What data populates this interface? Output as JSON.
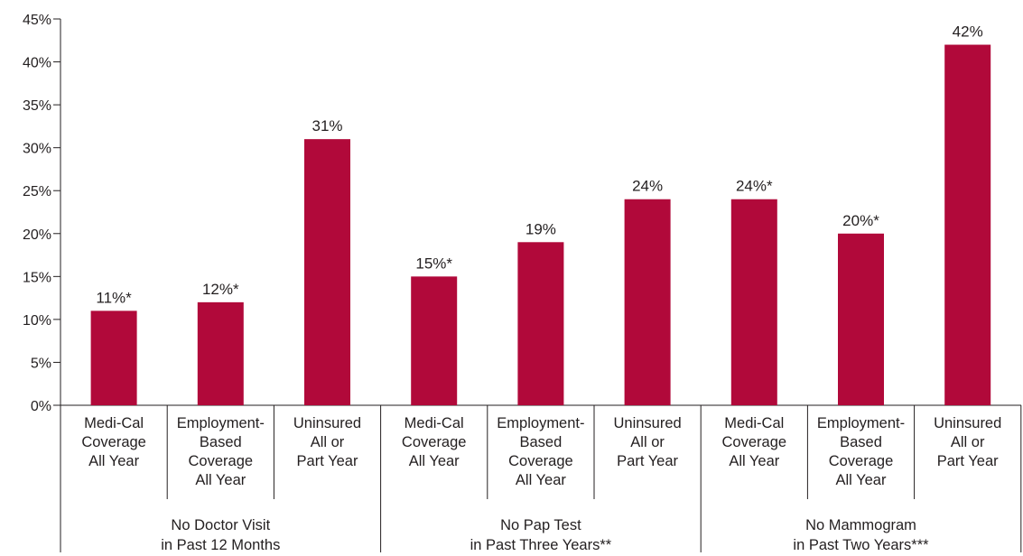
{
  "chart_data": {
    "type": "bar",
    "title": "",
    "xlabel": "",
    "ylabel": "",
    "ylim": [
      0,
      45
    ],
    "yticks": [
      "0%",
      "5%",
      "10%",
      "15%",
      "20%",
      "25%",
      "30%",
      "35%",
      "40%",
      "45%"
    ],
    "ytick_values": [
      0,
      5,
      10,
      15,
      20,
      25,
      30,
      35,
      40,
      45
    ],
    "bar_color": "#b1093a",
    "grid": false,
    "categories": [
      "Medi-Cal Coverage All Year",
      "Employment-Based Coverage All Year",
      "Uninsured All or Part Year",
      "Medi-Cal Coverage All Year",
      "Employment-Based Coverage All Year",
      "Uninsured All or Part Year",
      "Medi-Cal Coverage All Year",
      "Employment-Based Coverage All Year",
      "Uninsured All or Part Year"
    ],
    "category_lines": [
      [
        "Medi-Cal",
        "Coverage",
        "All Year"
      ],
      [
        "Employment-",
        "Based",
        "Coverage",
        "All Year"
      ],
      [
        "Uninsured",
        "All or",
        "Part Year"
      ],
      [
        "Medi-Cal",
        "Coverage",
        "All Year"
      ],
      [
        "Employment-",
        "Based",
        "Coverage",
        "All Year"
      ],
      [
        "Uninsured",
        "All or",
        "Part Year"
      ],
      [
        "Medi-Cal",
        "Coverage",
        "All Year"
      ],
      [
        "Employment-",
        "Based",
        "Coverage",
        "All Year"
      ],
      [
        "Uninsured",
        "All or",
        "Part Year"
      ]
    ],
    "values": [
      11,
      12,
      31,
      15,
      19,
      24,
      24,
      20,
      42
    ],
    "data_labels": [
      "11%*",
      "12%*",
      "31%",
      "15%*",
      "19%",
      "24%",
      "24%*",
      "20%*",
      "42%"
    ],
    "groups": [
      {
        "lines": [
          "No Doctor Visit",
          "in Past 12 Months"
        ],
        "members": [
          0,
          1,
          2
        ]
      },
      {
        "lines": [
          "No Pap Test",
          "in Past Three Years**"
        ],
        "members": [
          3,
          4,
          5
        ]
      },
      {
        "lines": [
          "No Mammogram",
          "in Past Two Years***"
        ],
        "members": [
          6,
          7,
          8
        ]
      }
    ]
  }
}
